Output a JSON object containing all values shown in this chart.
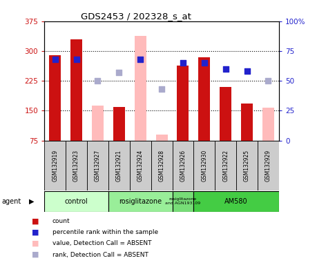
{
  "title": "GDS2453 / 202328_s_at",
  "samples": [
    "GSM132919",
    "GSM132923",
    "GSM132927",
    "GSM132921",
    "GSM132924",
    "GSM132928",
    "GSM132926",
    "GSM132930",
    "GSM132922",
    "GSM132925",
    "GSM132929"
  ],
  "bar_values": [
    289,
    329,
    null,
    160,
    null,
    null,
    263,
    284,
    210,
    168,
    null
  ],
  "bar_absent_values": [
    null,
    null,
    162,
    null,
    338,
    90,
    null,
    null,
    null,
    null,
    158
  ],
  "percentile_present": [
    68,
    68,
    null,
    null,
    68,
    null,
    65,
    65,
    60,
    58,
    null
  ],
  "percentile_absent": [
    null,
    null,
    50,
    57,
    null,
    43,
    null,
    null,
    null,
    null,
    50
  ],
  "ylim_left": [
    75,
    375
  ],
  "ylim_right": [
    0,
    100
  ],
  "yticks_left": [
    75,
    150,
    225,
    300,
    375
  ],
  "yticks_right": [
    0,
    25,
    50,
    75,
    100
  ],
  "groups": [
    {
      "label": "control",
      "start": 0,
      "end": 3,
      "color": "#ccffcc"
    },
    {
      "label": "rosiglitazone",
      "start": 3,
      "end": 6,
      "color": "#99ee99"
    },
    {
      "label": "rosiglitazone\nand AGN193109",
      "start": 6,
      "end": 7,
      "color": "#77dd77"
    },
    {
      "label": "AM580",
      "start": 7,
      "end": 11,
      "color": "#44cc44"
    }
  ],
  "bar_color_present": "#cc1111",
  "bar_color_absent": "#ffbbbb",
  "dot_color_present": "#2222cc",
  "dot_color_absent": "#aaaacc",
  "bar_width": 0.55,
  "plot_bg": "#ffffff",
  "left_label_color": "#cc1111",
  "right_label_color": "#2222cc",
  "sample_box_color": "#cccccc",
  "grid_yticks": [
    150,
    225,
    300
  ]
}
